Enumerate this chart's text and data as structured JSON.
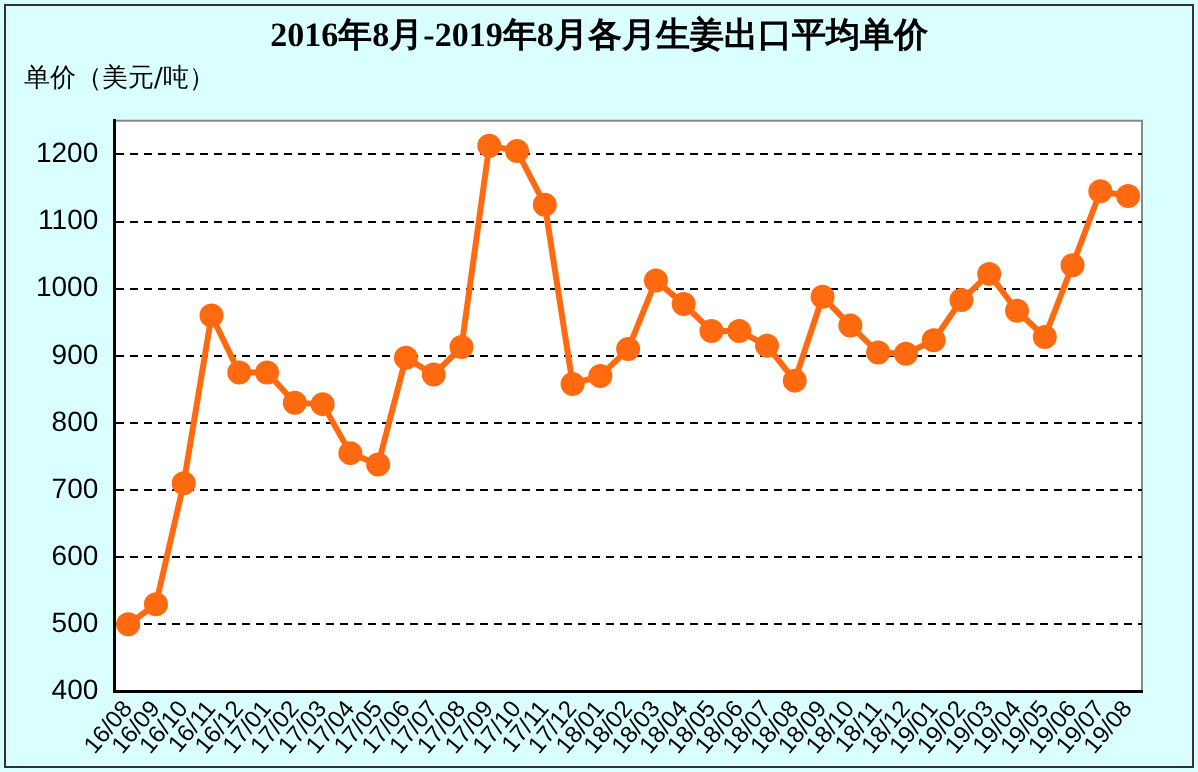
{
  "chart_data": {
    "type": "line",
    "title": "2016年8月-2019年8月各月生姜出口平均单价",
    "ylabel": "单价（美元/吨）",
    "categories": [
      "16/08",
      "16/09",
      "16/10",
      "16/11",
      "16/12",
      "17/01",
      "17/02",
      "17/03",
      "17/04",
      "17/05",
      "17/06",
      "17/07",
      "17/08",
      "17/09",
      "17/10",
      "17/11",
      "17/12",
      "18/01",
      "18/02",
      "18/03",
      "18/04",
      "18/05",
      "18/06",
      "18/07",
      "18/08",
      "18/09",
      "18/10",
      "18/11",
      "18/12",
      "19/01",
      "19/02",
      "19/03",
      "19/04",
      "19/05",
      "19/06",
      "19/07",
      "19/08"
    ],
    "series": [
      {
        "color": "#ff6a10",
        "values": [
          500,
          530,
          710,
          960,
          875,
          875,
          830,
          828,
          755,
          738,
          897,
          872,
          913,
          1213,
          1205,
          1125,
          858,
          870,
          910,
          1012,
          977,
          937,
          937,
          915,
          863,
          988,
          945,
          905,
          903,
          923,
          983,
          1022,
          967,
          928,
          1035,
          1145,
          1138
        ]
      }
    ],
    "ylim": [
      400,
      1250
    ],
    "yticks": [
      400,
      500,
      600,
      700,
      800,
      900,
      1000,
      1100,
      1200
    ],
    "grid": "y",
    "line_style": "solid",
    "marker": "circle",
    "legend": false
  }
}
